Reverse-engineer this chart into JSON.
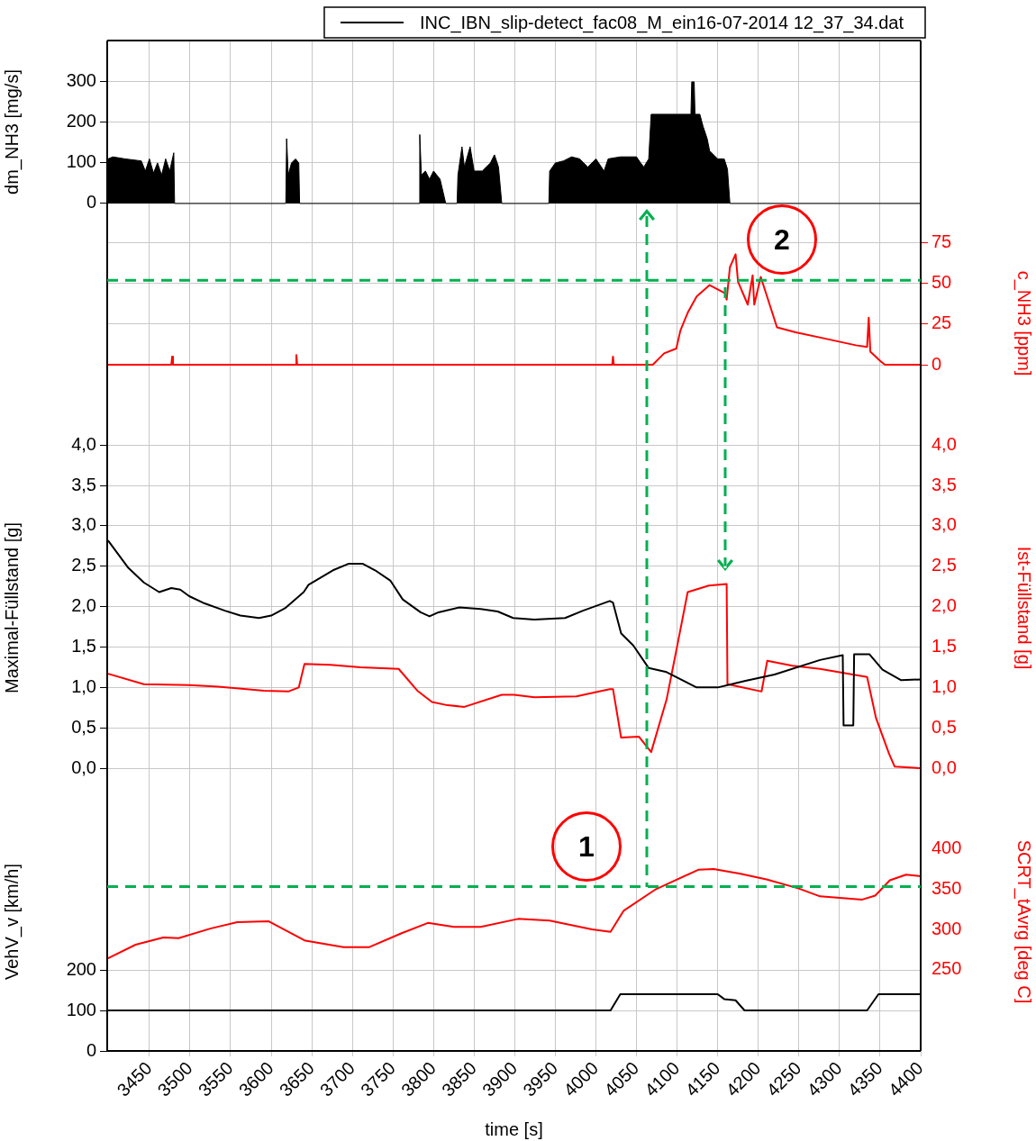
{
  "chart_data": [
    {
      "type": "area",
      "ylabel": "dm_NH3 [mg/s]",
      "legend": "top right",
      "grid": true,
      "marker": "none",
      "tick_labels": "y",
      "xlim": [
        3398,
        4400
      ],
      "xticks": [
        3450,
        3500,
        3550,
        3600,
        3650,
        3700,
        3750,
        3800,
        3850,
        3900,
        3950,
        4000,
        4050,
        4100,
        4150,
        4200,
        4250,
        4300,
        4350,
        4400
      ],
      "ylim": [
        -49,
        402
      ],
      "yticks": [
        0,
        100,
        200,
        300
      ],
      "series": [
        {
          "name": "INC_IBN_slip-detect_fac08_M_ein16-07-2014 12_37_34.dat",
          "color": "#000000",
          "x": [
            3399,
            3405,
            3420,
            3440,
            3445,
            3450,
            3455,
            3460,
            3465,
            3470,
            3475,
            3480,
            3481,
            3618,
            3619,
            3621,
            3625,
            3630,
            3634,
            3635,
            3782,
            3783,
            3785,
            3790,
            3795,
            3800,
            3808,
            3815,
            3829,
            3830,
            3835,
            3838,
            3845,
            3850,
            3860,
            3870,
            3875,
            3880,
            3884,
            3942,
            3943,
            3950,
            3960,
            3970,
            3980,
            3990,
            4000,
            4010,
            4015,
            4030,
            4050,
            4055,
            4059,
            4065,
            4068,
            4100,
            4117,
            4118,
            4121,
            4122,
            4128,
            4132,
            4137,
            4140,
            4150,
            4158,
            4162,
            4165,
            4400
          ],
          "values": [
            110,
            115,
            110,
            105,
            80,
            110,
            75,
            100,
            70,
            110,
            80,
            125,
            0,
            0,
            160,
            70,
            100,
            110,
            100,
            0,
            0,
            170,
            70,
            80,
            60,
            80,
            60,
            0,
            0,
            70,
            140,
            90,
            140,
            80,
            80,
            100,
            120,
            90,
            0,
            0,
            80,
            100,
            105,
            115,
            110,
            90,
            110,
            80,
            110,
            115,
            115,
            100,
            90,
            110,
            220,
            220,
            220,
            300,
            300,
            220,
            220,
            190,
            160,
            130,
            110,
            110,
            85,
            0,
            0
          ]
        }
      ]
    },
    {
      "type": "line",
      "y2label": "c_NH3 [ppm]",
      "grid": true,
      "marker": "none",
      "line_style": "solid",
      "tick_labels": "y",
      "xlim": [
        3398,
        4400
      ],
      "xticks": [
        3450,
        3500,
        3550,
        3600,
        3650,
        3700,
        3750,
        3800,
        3850,
        3900,
        3950,
        4000,
        4050,
        4100,
        4150,
        4200,
        4250,
        4300,
        4350,
        4400
      ],
      "y2lim": [
        -36,
        87
      ],
      "y2ticks": [
        0,
        25,
        50,
        75
      ],
      "ref_lines": [
        {
          "axis": "y2",
          "value": 52,
          "color": "#00b050",
          "line_style": "dashed"
        }
      ],
      "annotations": [
        "2"
      ],
      "series": [
        {
          "color": "#ff0000",
          "axis": "y2",
          "x": [
            3398,
            3477,
            3478,
            3479,
            3630,
            3631,
            3632,
            4020,
            4021,
            4022,
            4070,
            4084,
            4099,
            4104,
            4113,
            4124,
            4140,
            4159,
            4161,
            4165,
            4172,
            4175,
            4187,
            4193,
            4195,
            4203,
            4223,
            4246,
            4283,
            4320,
            4334,
            4336,
            4338,
            4351,
            4356,
            4400
          ],
          "values": [
            0,
            0,
            5,
            0,
            0,
            6,
            0,
            0,
            5,
            0,
            0,
            7,
            10,
            21,
            32,
            42,
            49,
            44,
            40,
            60,
            68,
            51,
            37,
            55,
            37,
            54,
            23,
            20,
            16,
            12,
            11,
            29,
            8,
            2,
            0,
            0
          ]
        }
      ]
    },
    {
      "type": "line",
      "ylabel": "Maximal-Füllstand [g]",
      "y2label": "Ist-Füllstand [g]",
      "grid": true,
      "marker": "none",
      "line_style": "solid",
      "tick_labels": "y",
      "xlim": [
        3398,
        4400
      ],
      "xticks": [
        3450,
        3500,
        3550,
        3600,
        3650,
        3700,
        3750,
        3800,
        3850,
        3900,
        3950,
        4000,
        4050,
        4100,
        4150,
        4200,
        4250,
        4300,
        4350,
        4400
      ],
      "ylim": [
        -0.3,
        4.27
      ],
      "yticks": [
        {
          "value": 0,
          "label": "0,0"
        },
        {
          "value": 0.5,
          "label": "0,5"
        },
        {
          "value": 1,
          "label": "1,0"
        },
        {
          "value": 1.5,
          "label": "1,5"
        },
        {
          "value": 2,
          "label": "2,0"
        },
        {
          "value": 2.5,
          "label": "2,5"
        },
        {
          "value": 3,
          "label": "3,0"
        },
        {
          "value": 3.5,
          "label": "3,5"
        },
        {
          "value": 4,
          "label": "4,0"
        }
      ],
      "y2lim": [
        -0.3,
        4.27
      ],
      "y2ticks": [
        {
          "value": 0,
          "label": "0,0"
        },
        {
          "value": 0.5,
          "label": "0,5"
        },
        {
          "value": 1,
          "label": "1,0"
        },
        {
          "value": 1.5,
          "label": "1,5"
        },
        {
          "value": 2,
          "label": "2,0"
        },
        {
          "value": 2.5,
          "label": "2,5"
        },
        {
          "value": 3,
          "label": "3,0"
        },
        {
          "value": 3.5,
          "label": "3,5"
        },
        {
          "value": 4,
          "label": "4,0"
        }
      ],
      "series": [
        {
          "color": "#000000",
          "axis": "y",
          "x": [
            3399,
            3424,
            3443,
            3462,
            3477,
            3488,
            3499,
            3518,
            3543,
            3562,
            3585,
            3600,
            3617,
            3640,
            3646,
            3676,
            3695,
            3713,
            3728,
            3747,
            3762,
            3784,
            3795,
            3806,
            3832,
            3858,
            3879,
            3898,
            3924,
            3962,
            3984,
            4017,
            4021,
            4031,
            4046,
            4065,
            4087,
            4124,
            4150,
            4183,
            4220,
            4276,
            4304,
            4305,
            4317,
            4318,
            4337,
            4353,
            4376,
            4400
          ],
          "values": [
            2.82,
            2.48,
            2.3,
            2.18,
            2.23,
            2.21,
            2.13,
            2.04,
            1.95,
            1.89,
            1.86,
            1.89,
            1.98,
            2.18,
            2.27,
            2.45,
            2.53,
            2.53,
            2.45,
            2.32,
            2.09,
            1.93,
            1.88,
            1.93,
            1.99,
            1.97,
            1.94,
            1.86,
            1.84,
            1.86,
            1.95,
            2.07,
            2.05,
            1.67,
            1.52,
            1.24,
            1.19,
            1.0,
            1.0,
            1.08,
            1.16,
            1.34,
            1.4,
            0.53,
            0.53,
            1.41,
            1.41,
            1.22,
            1.09,
            1.1
          ]
        },
        {
          "color": "#ff0000",
          "axis": "y2",
          "x": [
            3399,
            3443,
            3499,
            3535,
            3591,
            3621,
            3634,
            3641,
            3673,
            3710,
            3757,
            3780,
            3798,
            3817,
            3838,
            3884,
            3899,
            3924,
            3976,
            4017,
            4021,
            4031,
            4053,
            4068,
            4087,
            4101,
            4113,
            4139,
            4161,
            4162,
            4204,
            4211,
            4242,
            4276,
            4334,
            4345,
            4361,
            4368,
            4400
          ],
          "values": [
            1.17,
            1.04,
            1.03,
            1.01,
            0.96,
            0.95,
            1.0,
            1.29,
            1.28,
            1.25,
            1.23,
            0.96,
            0.82,
            0.78,
            0.76,
            0.91,
            0.91,
            0.88,
            0.89,
            0.98,
            0.98,
            0.38,
            0.39,
            0.2,
            0.85,
            1.56,
            2.18,
            2.26,
            2.28,
            1.04,
            0.95,
            1.33,
            1.27,
            1.23,
            1.13,
            0.62,
            0.18,
            0.02,
            0.0
          ]
        }
      ]
    },
    {
      "type": "line",
      "xlabel": "time [s]",
      "ylabel": "VehV_v [km/h]",
      "y2label": "SCRT_tAvrg [deg C]",
      "grid": true,
      "marker": "none",
      "line_style": "solid",
      "xlim": [
        3398,
        4400
      ],
      "xticks": [
        3450,
        3500,
        3550,
        3600,
        3650,
        3700,
        3750,
        3800,
        3850,
        3900,
        3950,
        4000,
        4050,
        4100,
        4150,
        4200,
        4250,
        4300,
        4350,
        4400
      ],
      "ylim": [
        0,
        638
      ],
      "yticks": [
        0,
        100,
        200
      ],
      "y2lim": [
        149,
        470
      ],
      "y2ticks": [
        250,
        300,
        350,
        400
      ],
      "ref_lines": [
        {
          "axis": "y2",
          "value": 353,
          "color": "#00b050",
          "line_style": "dashed"
        }
      ],
      "annotations": [
        "1"
      ],
      "series": [
        {
          "color": "#ff0000",
          "axis": "y2",
          "x": [
            3399,
            3433,
            3467,
            3486,
            3525,
            3558,
            3597,
            3642,
            3689,
            3721,
            3760,
            3793,
            3825,
            3858,
            3904,
            3943,
            3995,
            4018,
            4034,
            4074,
            4126,
            4145,
            4178,
            4210,
            4249,
            4276,
            4328,
            4344,
            4362,
            4382,
            4400
          ],
          "values": [
            264,
            281,
            290,
            289,
            301,
            309,
            310,
            286,
            278,
            278,
            295,
            308,
            303,
            303,
            313,
            311,
            300,
            297,
            323,
            350,
            374,
            375,
            369,
            362,
            351,
            341,
            337,
            342,
            361,
            368,
            366
          ]
        },
        {
          "color": "#000000",
          "axis": "y",
          "x": [
            3398,
            4018,
            4030,
            4150,
            4158,
            4172,
            4183,
            4334,
            4348,
            4400
          ],
          "values": [
            100,
            100,
            140,
            140,
            128,
            125,
            100,
            100,
            140,
            140
          ]
        }
      ]
    }
  ]
}
